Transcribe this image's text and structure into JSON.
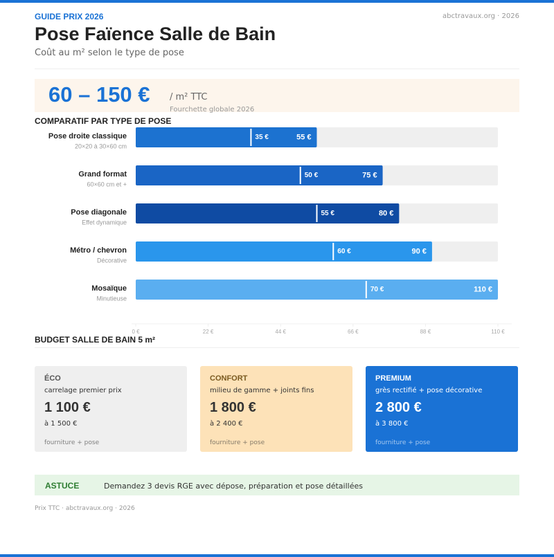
{
  "header": {
    "kicker": "GUIDE PRIX 2026",
    "site": "abctravaux.org · 2026",
    "title": "Pose Faïence Salle de Bain",
    "subtitle": "Coût au m² selon le type de pose"
  },
  "headline": {
    "range": "60 – 150 €",
    "unit": "/ m² TTC",
    "note": "Fourchette globale 2026"
  },
  "chart_data": {
    "type": "range-bar",
    "title": "COMPARATIF PAR TYPE DE POSE",
    "categories": [
      "Pose droite classique",
      "Grand format",
      "Pose diagonale",
      "Métro / chevron",
      "Mosaïque"
    ],
    "sublabels": [
      "20×20 à 30×60 cm",
      "60×60 cm et +",
      "Effet dynamique",
      "Décorative",
      "Minutieuse"
    ],
    "low_values": [
      35,
      50,
      55,
      60,
      70
    ],
    "low_value_labels": [
      "35 €",
      "50 €",
      "55 €",
      "60 €",
      "70 €"
    ],
    "values": [
      55,
      75,
      80,
      90,
      110
    ],
    "value_labels": [
      "55 €",
      "75 €",
      "80 €",
      "90 €",
      "110 €"
    ],
    "colors": [
      "#1c72d0",
      "#1a65c5",
      "#0f4ba3",
      "#2a96ec",
      "#5aaef0"
    ],
    "track_color": "#efefef",
    "xlim": [
      0,
      110
    ],
    "xticks": [
      {
        "value": 0,
        "label": "0 €"
      },
      {
        "value": 22,
        "label": "22 €"
      },
      {
        "value": 44,
        "label": "44 €"
      },
      {
        "value": 66,
        "label": "66 €"
      },
      {
        "value": 88,
        "label": "88 €"
      },
      {
        "value": 110,
        "label": "110 €"
      }
    ]
  },
  "budget": {
    "title": "BUDGET SALLE DE BAIN 5 m²",
    "cards": [
      {
        "label": "ÉCO",
        "desc": "carrelage premier prix",
        "price": "1 100 €",
        "to": "à 1 500 €",
        "note": "fourniture + pose"
      },
      {
        "label": "CONFORT",
        "desc": "milieu de gamme + joints fins",
        "price": "1 800 €",
        "to": "à 2 400 €",
        "note": "fourniture + pose"
      },
      {
        "label": "PREMIUM",
        "desc": "grès rectifié + pose décorative",
        "price": "2 800 €",
        "to": "à 3 800 €",
        "note": "fourniture + pose"
      }
    ]
  },
  "tip": {
    "label": "ASTUCE",
    "text": "Demandez 3 devis RGE avec dépose, préparation et pose détaillées"
  },
  "footer": "Prix TTC · abctravaux.org · 2026"
}
